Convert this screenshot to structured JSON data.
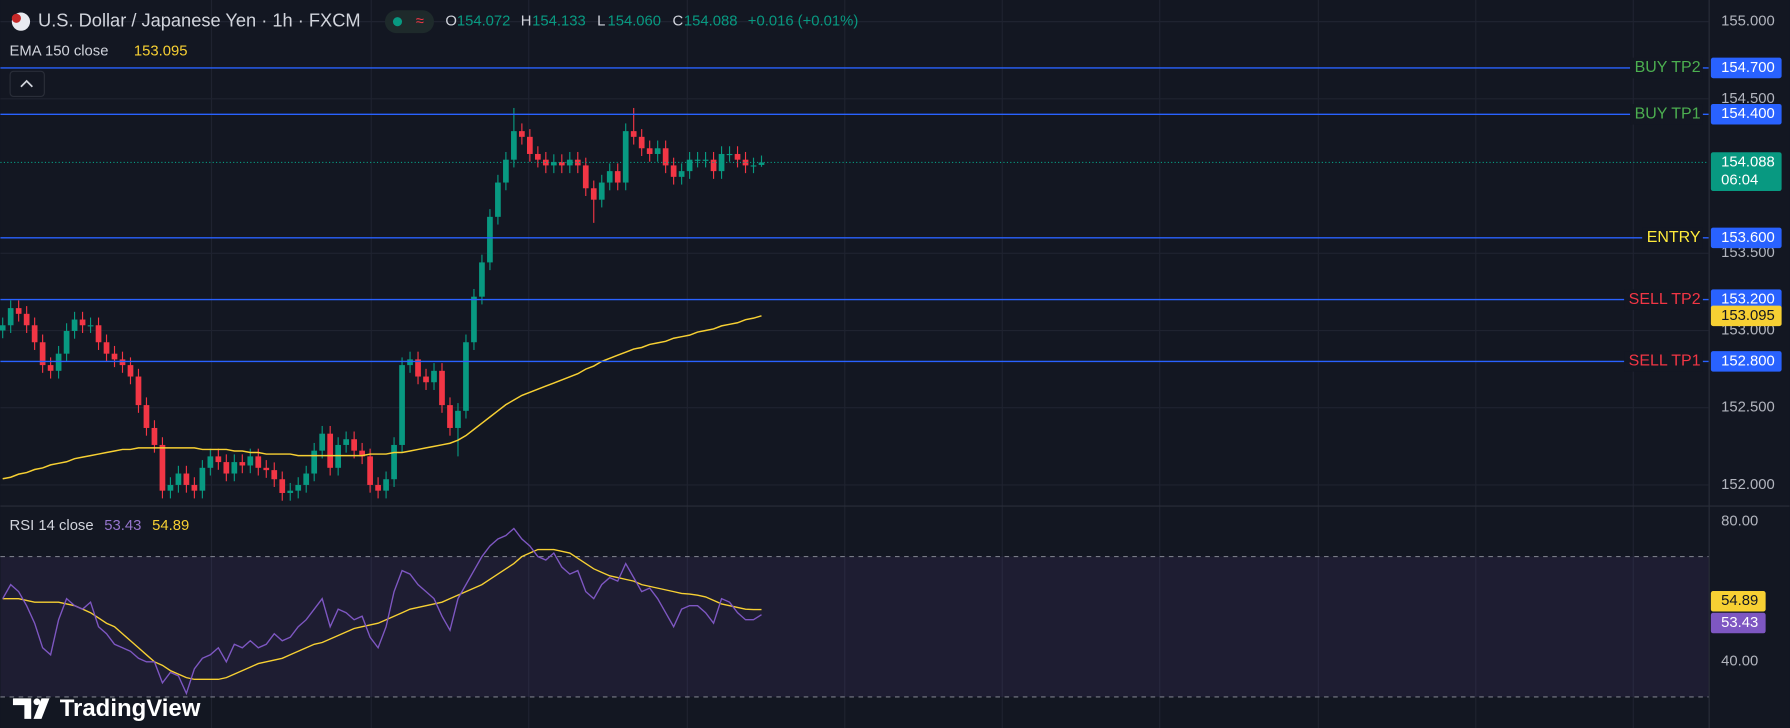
{
  "header": {
    "symbol": "U.S. Dollar / Japanese Yen · 1h · FXCM",
    "open_label": "O",
    "open": "154.072",
    "high_label": "H",
    "high": "154.133",
    "low_label": "L",
    "low": "154.060",
    "close_label": "C",
    "close": "154.088",
    "change": "+0.016 (+0.01%)"
  },
  "logo": "TradingView",
  "chart_data": [
    {
      "type": "candlestick",
      "up_color": "#089981",
      "down_color": "#f23645",
      "open": [
        153.0,
        153.034,
        153.145,
        153.108,
        153.034,
        152.924,
        152.776,
        152.739,
        152.85,
        152.997,
        153.071,
        153.034,
        153.034,
        152.924,
        152.85,
        152.813,
        152.776,
        152.702,
        152.517,
        152.369,
        152.259,
        151.963,
        152.0,
        152.074,
        152.0,
        151.963,
        152.111,
        152.185,
        152.148,
        152.074,
        152.148,
        152.126,
        152.185,
        152.111,
        152.096,
        152.037,
        151.948,
        151.963,
        152.0,
        152.074,
        152.222,
        152.332,
        152.111,
        152.259,
        152.296,
        152.222,
        152.185,
        152.0,
        151.963,
        152.037,
        152.259,
        152.776,
        152.813,
        152.702,
        152.665,
        152.739,
        152.517,
        152.369,
        152.48,
        152.924,
        153.219,
        153.441,
        153.736,
        153.958,
        154.106,
        154.291,
        154.254,
        154.143,
        154.106,
        154.069,
        154.091,
        154.069,
        154.106,
        154.069,
        153.921,
        153.847,
        153.958,
        154.032,
        153.958,
        154.291,
        154.254,
        154.18,
        154.143,
        154.18,
        154.069,
        153.995,
        154.032,
        154.106,
        154.106,
        154.106,
        154.032,
        154.143,
        154.143,
        154.106,
        154.069,
        154.072
      ],
      "high": [
        153.084,
        153.195,
        153.195,
        153.158,
        153.084,
        152.974,
        152.826,
        152.9,
        153.047,
        153.121,
        153.121,
        153.084,
        153.084,
        152.974,
        152.9,
        152.863,
        152.826,
        152.752,
        152.567,
        152.419,
        152.309,
        152.05,
        152.124,
        152.124,
        152.05,
        152.161,
        152.235,
        152.235,
        152.198,
        152.198,
        152.198,
        152.235,
        152.235,
        152.161,
        152.146,
        152.087,
        152.013,
        152.05,
        152.124,
        152.272,
        152.382,
        152.382,
        152.309,
        152.346,
        152.346,
        152.272,
        152.235,
        152.05,
        152.087,
        152.309,
        152.826,
        152.863,
        152.863,
        152.752,
        152.789,
        152.789,
        152.567,
        152.53,
        152.974,
        153.269,
        153.491,
        153.786,
        154.008,
        154.156,
        154.441,
        154.341,
        154.304,
        154.193,
        154.156,
        154.141,
        154.141,
        154.156,
        154.156,
        154.119,
        153.971,
        154.008,
        154.082,
        154.082,
        154.341,
        154.441,
        154.304,
        154.23,
        154.23,
        154.23,
        154.119,
        154.082,
        154.156,
        154.156,
        154.156,
        154.156,
        154.193,
        154.193,
        154.193,
        154.156,
        154.119,
        154.133
      ],
      "low": [
        152.95,
        152.984,
        153.058,
        152.984,
        152.874,
        152.726,
        152.689,
        152.689,
        152.8,
        152.947,
        152.984,
        152.984,
        152.874,
        152.8,
        152.763,
        152.726,
        152.652,
        152.467,
        152.319,
        152.209,
        151.913,
        151.913,
        151.95,
        151.95,
        151.913,
        151.913,
        152.061,
        152.098,
        152.024,
        152.024,
        152.076,
        152.076,
        152.061,
        152.046,
        151.987,
        151.898,
        151.898,
        151.913,
        151.95,
        152.024,
        152.172,
        152.061,
        152.061,
        152.209,
        152.172,
        152.135,
        151.95,
        151.913,
        151.913,
        151.987,
        152.209,
        152.726,
        152.652,
        152.615,
        152.615,
        152.467,
        152.319,
        152.185,
        152.43,
        152.874,
        153.169,
        153.391,
        153.686,
        153.908,
        154.056,
        154.204,
        154.093,
        154.056,
        154.019,
        154.019,
        154.019,
        154.019,
        154.019,
        153.871,
        153.697,
        153.797,
        153.908,
        153.908,
        153.908,
        154.204,
        154.13,
        154.093,
        154.093,
        154.019,
        153.945,
        153.945,
        153.982,
        154.056,
        154.056,
        153.982,
        153.982,
        154.093,
        154.056,
        154.019,
        154.019,
        154.06
      ],
      "close": [
        153.034,
        153.145,
        153.108,
        153.034,
        152.924,
        152.776,
        152.739,
        152.85,
        152.997,
        153.071,
        153.034,
        153.034,
        152.924,
        152.85,
        152.813,
        152.776,
        152.702,
        152.517,
        152.369,
        152.259,
        151.963,
        152.0,
        152.074,
        152.0,
        151.963,
        152.111,
        152.185,
        152.148,
        152.074,
        152.148,
        152.126,
        152.185,
        152.111,
        152.096,
        152.037,
        151.948,
        151.963,
        152.0,
        152.074,
        152.222,
        152.332,
        152.111,
        152.259,
        152.296,
        152.222,
        152.185,
        152.0,
        151.963,
        152.037,
        152.259,
        152.776,
        152.813,
        152.702,
        152.665,
        152.739,
        152.517,
        152.369,
        152.48,
        152.924,
        153.219,
        153.441,
        153.736,
        153.958,
        154.106,
        154.291,
        154.254,
        154.143,
        154.106,
        154.069,
        154.091,
        154.069,
        154.106,
        154.069,
        153.921,
        153.847,
        153.958,
        154.032,
        153.958,
        154.291,
        154.254,
        154.18,
        154.143,
        154.18,
        154.069,
        153.995,
        154.032,
        154.106,
        154.106,
        154.106,
        154.032,
        154.143,
        154.143,
        154.106,
        154.069,
        154.069,
        154.088
      ],
      "ema": {
        "name": "EMA 150 close",
        "color": "#f7d033",
        "last_label": "153.095",
        "values": [
          152.04,
          152.05,
          152.07,
          152.08,
          152.1,
          152.11,
          152.13,
          152.14,
          152.15,
          152.17,
          152.18,
          152.19,
          152.2,
          152.21,
          152.22,
          152.23,
          152.23,
          152.24,
          152.24,
          152.24,
          152.24,
          152.24,
          152.24,
          152.24,
          152.24,
          152.23,
          152.23,
          152.23,
          152.23,
          152.22,
          152.22,
          152.21,
          152.21,
          152.2,
          152.2,
          152.2,
          152.2,
          152.19,
          152.19,
          152.19,
          152.19,
          152.19,
          152.19,
          152.19,
          152.19,
          152.19,
          152.2,
          152.2,
          152.2,
          152.21,
          152.21,
          152.22,
          152.23,
          152.24,
          152.25,
          152.26,
          152.27,
          152.29,
          152.32,
          152.36,
          152.4,
          152.44,
          152.48,
          152.52,
          152.55,
          152.58,
          152.6,
          152.62,
          152.64,
          152.66,
          152.68,
          152.7,
          152.72,
          152.75,
          152.77,
          152.8,
          152.82,
          152.84,
          152.86,
          152.88,
          152.89,
          152.91,
          152.92,
          152.93,
          152.95,
          152.96,
          152.97,
          152.99,
          153.0,
          153.01,
          153.03,
          153.04,
          153.05,
          153.07,
          153.08,
          153.095
        ]
      },
      "last_price": {
        "label": "154.088",
        "countdown": "06:04"
      },
      "ylim": [
        151.867,
        155.14
      ],
      "yticks": [
        {
          "value": 155,
          "label": "155.000"
        },
        {
          "value": 154.5,
          "label": "154.500"
        },
        {
          "value": 153.5,
          "label": "153.500"
        },
        {
          "value": 153,
          "label": "153.000"
        },
        {
          "value": 152.5,
          "label": "152.500"
        },
        {
          "value": 152,
          "label": "152.000"
        }
      ],
      "grid": true,
      "level_color": "#2962ff",
      "levels": [
        {
          "name": "BUY TP2",
          "value": 154.7,
          "value_label": "154.700",
          "color": "#4caf50"
        },
        {
          "name": "BUY TP1",
          "value": 154.4,
          "value_label": "154.400",
          "color": "#4caf50"
        },
        {
          "name": "ENTRY",
          "value": 153.6,
          "value_label": "153.600",
          "color": "#ffeb3b"
        },
        {
          "name": "SELL TP2",
          "value": 153.2,
          "value_label": "153.200",
          "color": "#f23645"
        },
        {
          "name": "SELL TP1",
          "value": 152.8,
          "value_label": "152.800",
          "color": "#f23645"
        }
      ]
    },
    {
      "type": "line",
      "title": "RSI 14 close",
      "series": [
        {
          "color": "#7e57c2",
          "last_label": "53.43",
          "values": [
            58,
            62,
            60,
            56,
            51,
            44,
            42,
            52,
            58,
            56,
            55,
            57,
            50,
            48,
            45,
            44,
            43,
            41,
            40,
            40,
            34,
            37,
            36,
            31,
            38,
            41,
            42,
            44,
            40,
            45,
            44,
            46,
            44,
            45,
            48,
            46,
            47,
            50,
            52,
            55,
            58,
            50,
            55,
            54,
            52,
            53,
            47,
            44,
            50,
            60,
            66,
            65,
            62,
            60,
            58,
            53,
            49,
            58,
            62,
            66,
            70,
            73,
            75,
            76,
            78,
            75,
            73,
            70,
            69,
            71,
            67,
            65,
            66,
            60,
            58,
            62,
            64,
            63,
            68,
            64,
            60,
            61,
            58,
            54,
            50,
            55,
            56,
            56,
            54,
            51,
            58,
            57,
            54,
            52,
            52,
            53.43
          ]
        },
        {
          "color": "#f7d033",
          "last_label": "54.89",
          "values": [
            58,
            58,
            58,
            57.5,
            57,
            57,
            57,
            57,
            56.5,
            56,
            55,
            54,
            52.5,
            51,
            50,
            48,
            46,
            44,
            42,
            40,
            39,
            37.5,
            36.5,
            35.5,
            35,
            35,
            35,
            35,
            35.5,
            36.5,
            37.5,
            38.5,
            39.5,
            40,
            40.5,
            41,
            42,
            43,
            44,
            45,
            45.5,
            46.5,
            47.5,
            48.5,
            49.5,
            50,
            50.5,
            51,
            52,
            53,
            54,
            55,
            55.5,
            56,
            56.5,
            57,
            58,
            59,
            60,
            61,
            62,
            63.5,
            65,
            66.5,
            68,
            70,
            71,
            72,
            72,
            72,
            71.5,
            71,
            69.5,
            68,
            66.5,
            65.5,
            64.5,
            64,
            63.5,
            63,
            62,
            61.5,
            61,
            60.5,
            60,
            59.5,
            59.3,
            59,
            58.5,
            57.5,
            56.5,
            56,
            55.5,
            55,
            54.9,
            54.89
          ]
        }
      ],
      "band": [
        30,
        70
      ],
      "band_color": "#7e57c2",
      "ylim": [
        21.14,
        84.55
      ],
      "yticks": [
        {
          "value": 80,
          "label": "80.00"
        },
        {
          "value": 40,
          "label": "40.00"
        }
      ]
    }
  ]
}
